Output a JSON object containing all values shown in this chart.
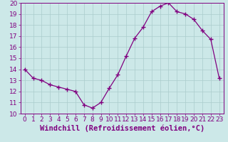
{
  "hours": [
    0,
    1,
    2,
    3,
    4,
    5,
    6,
    7,
    8,
    9,
    10,
    11,
    12,
    13,
    14,
    15,
    16,
    17,
    18,
    19,
    20,
    21,
    22,
    23
  ],
  "values": [
    14.0,
    13.2,
    13.0,
    12.6,
    12.4,
    12.2,
    12.0,
    10.8,
    10.5,
    11.0,
    12.3,
    13.5,
    15.2,
    16.8,
    17.8,
    19.2,
    19.7,
    20.0,
    19.2,
    19.0,
    18.5,
    17.5,
    16.7,
    13.2
  ],
  "ylim": [
    10,
    20
  ],
  "xlim": [
    -0.5,
    23.5
  ],
  "yticks": [
    10,
    11,
    12,
    13,
    14,
    15,
    16,
    17,
    18,
    19,
    20
  ],
  "xticks": [
    0,
    1,
    2,
    3,
    4,
    5,
    6,
    7,
    8,
    9,
    10,
    11,
    12,
    13,
    14,
    15,
    16,
    17,
    18,
    19,
    20,
    21,
    22,
    23
  ],
  "xlabel": "Windchill (Refroidissement éolien,°C)",
  "line_color": "#800080",
  "marker": "+",
  "marker_size": 4,
  "bg_color": "#cce8e8",
  "grid_color": "#aacccc",
  "tick_label_fontsize": 6.5,
  "xlabel_fontsize": 7.5
}
